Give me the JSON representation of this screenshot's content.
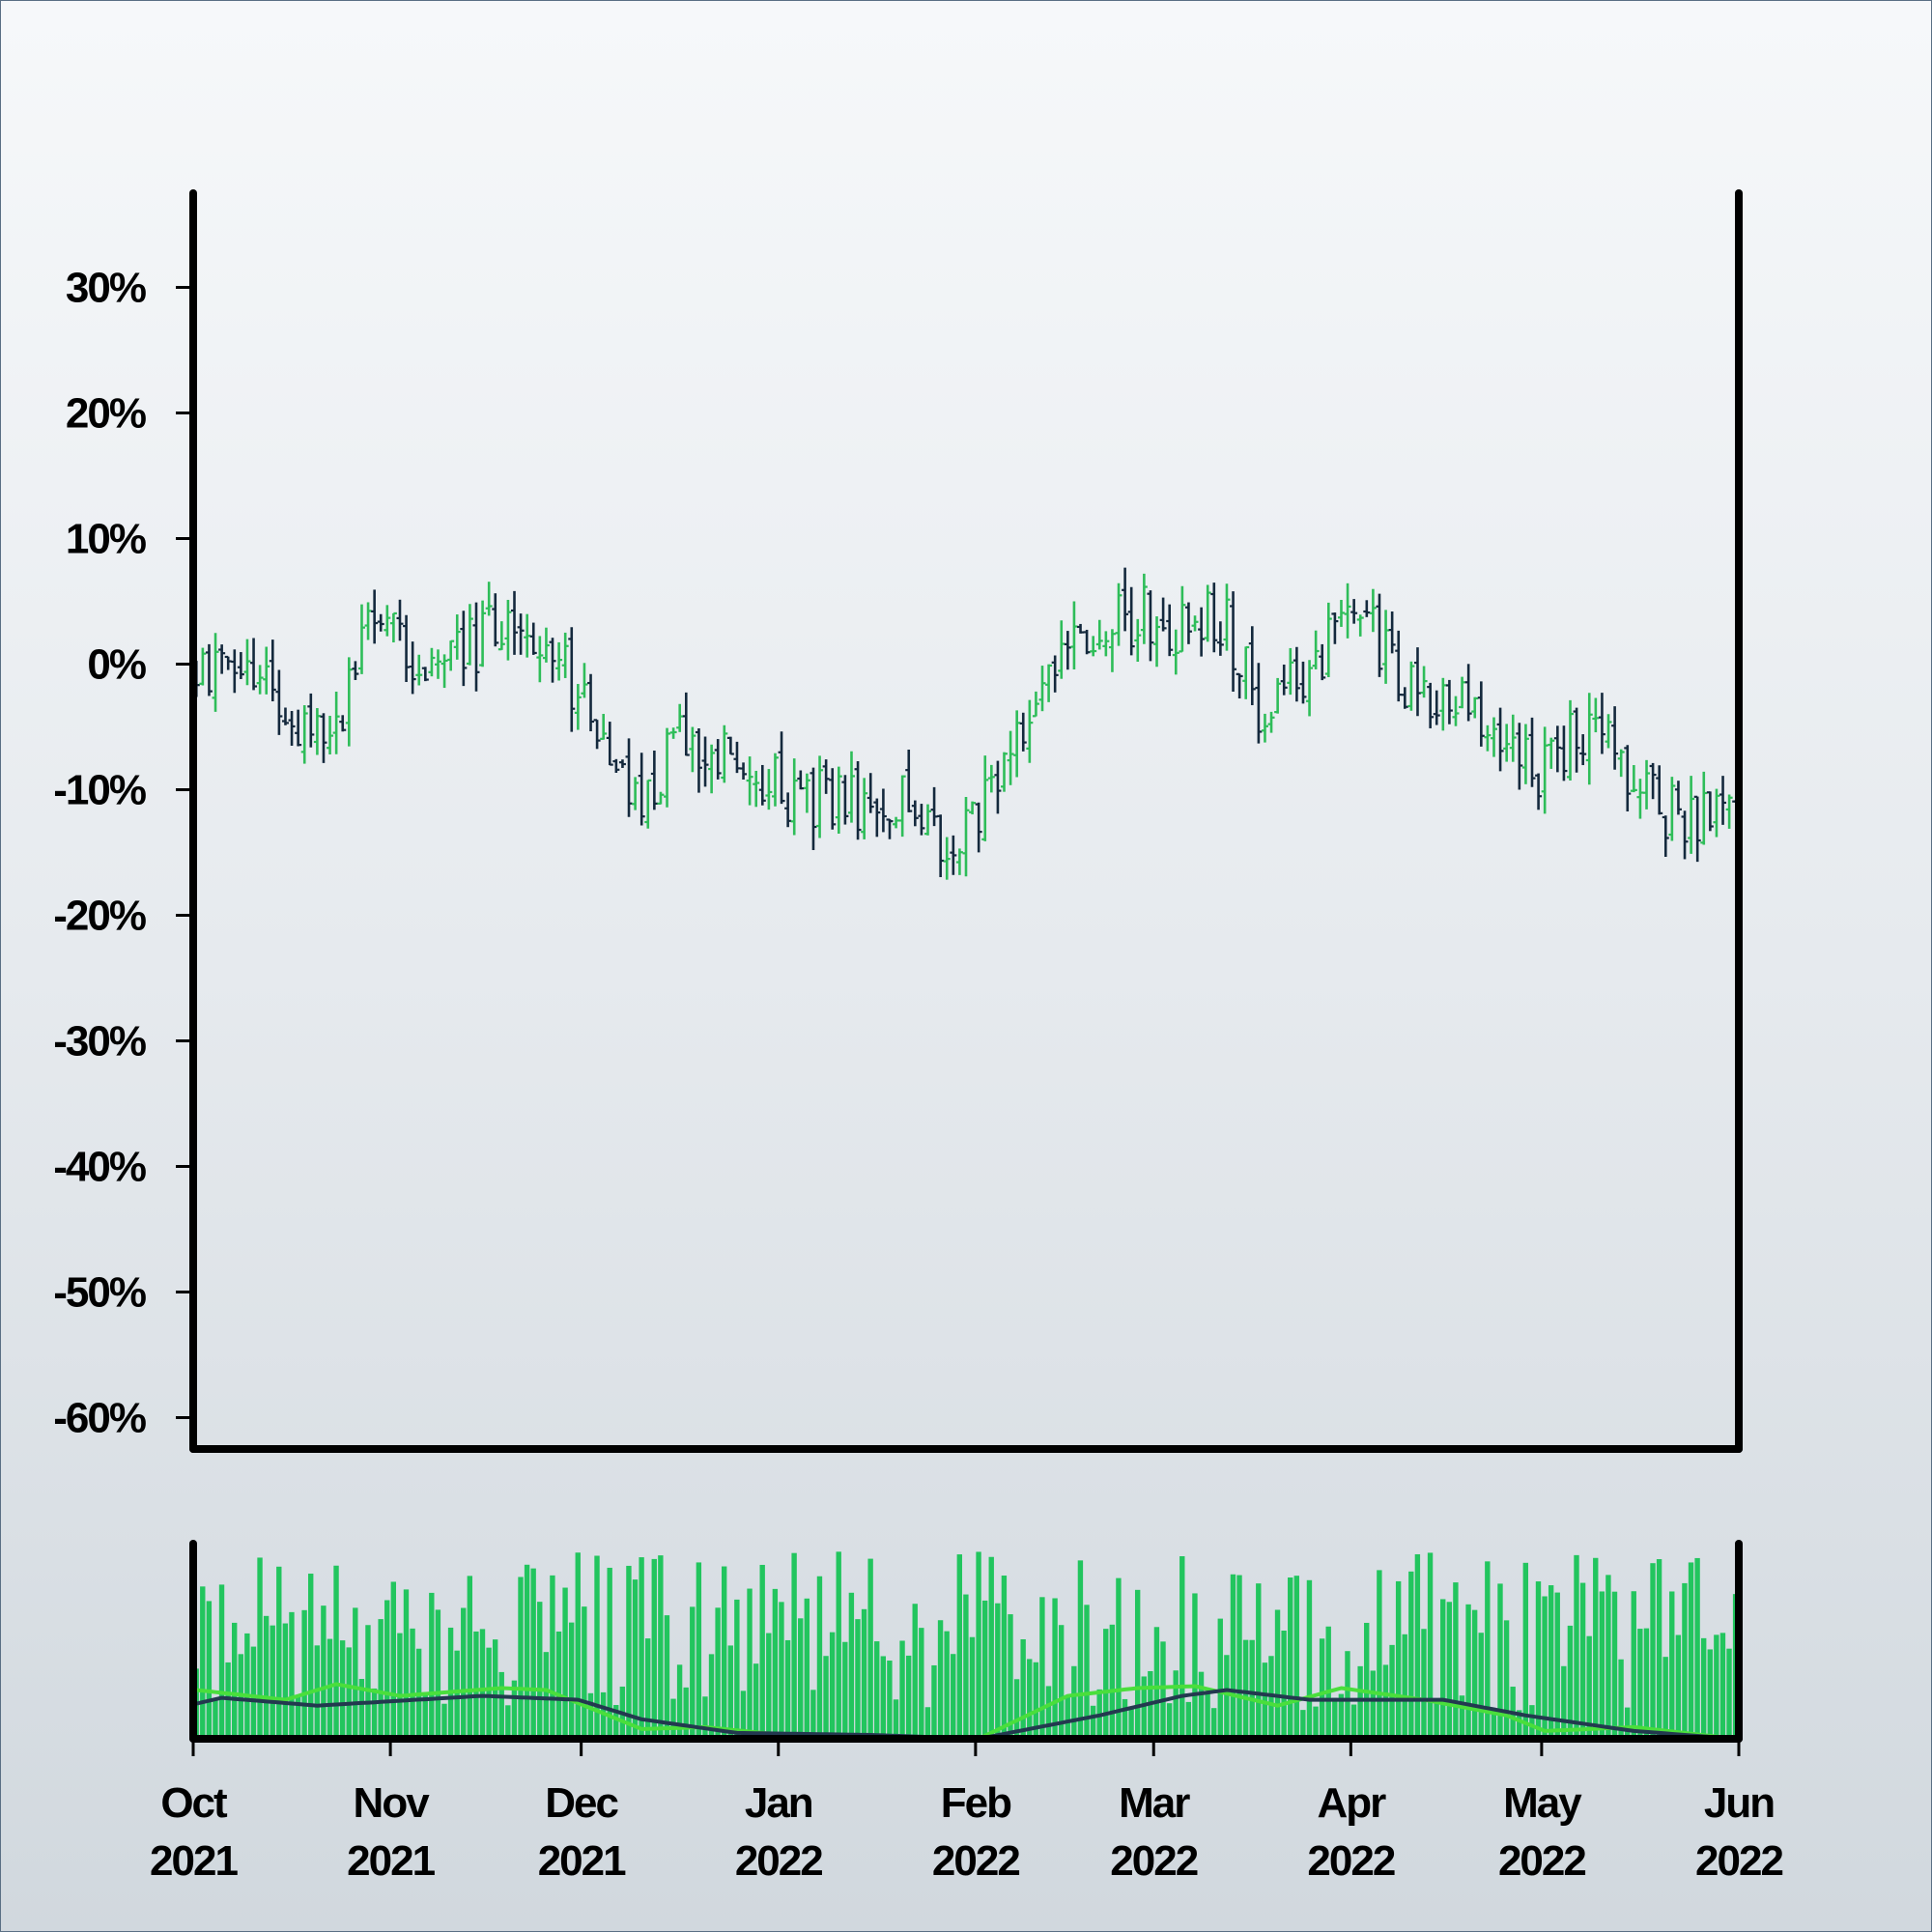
{
  "chart_data": {
    "type": "ohlc",
    "title": "",
    "xlabel": "",
    "ylabel": "",
    "colors": {
      "up": "#2ebd59",
      "down": "#14293d",
      "volume": "#22c55e",
      "ma_fast": "#4ade3c",
      "ma_slow": "#23394f",
      "axis": "#000000"
    },
    "price_panel": {
      "ylim": [
        -62.5,
        37.5
      ],
      "y_ticks": [
        {
          "value": 30,
          "label": "30%"
        },
        {
          "value": 20,
          "label": "20%"
        },
        {
          "value": 10,
          "label": "10%"
        },
        {
          "value": 0,
          "label": "0%"
        },
        {
          "value": -10,
          "label": "-10%"
        },
        {
          "value": -20,
          "label": "-20%"
        },
        {
          "value": -30,
          "label": "-30%"
        },
        {
          "value": -40,
          "label": "-40%"
        },
        {
          "value": -50,
          "label": "-50%"
        },
        {
          "value": -60,
          "label": "-60%"
        }
      ],
      "trend_keypoints": [
        [
          "2021-10-01",
          0
        ],
        [
          "2021-10-09",
          -1.5
        ],
        [
          "2021-10-20",
          -5
        ],
        [
          "2021-10-24",
          -4
        ],
        [
          "2021-10-30",
          5
        ],
        [
          "2021-11-05",
          -1
        ],
        [
          "2021-11-18",
          3
        ],
        [
          "2021-11-23",
          3
        ],
        [
          "2021-12-01",
          -3
        ],
        [
          "2021-12-09",
          -11
        ],
        [
          "2021-12-17",
          -6
        ],
        [
          "2022-01-05",
          -11
        ],
        [
          "2022-01-22",
          -10.5
        ],
        [
          "2022-01-26",
          -14
        ],
        [
          "2022-02-05",
          -9
        ],
        [
          "2022-02-14",
          1
        ],
        [
          "2022-02-26",
          4
        ],
        [
          "2022-03-05",
          3
        ],
        [
          "2022-03-11",
          4
        ],
        [
          "2022-03-17",
          -3
        ],
        [
          "2022-03-25",
          -1
        ],
        [
          "2022-04-01",
          5
        ],
        [
          "2022-04-08",
          -1
        ],
        [
          "2022-04-20",
          -4
        ],
        [
          "2022-04-29",
          -9
        ],
        [
          "2022-05-08",
          -5
        ],
        [
          "2022-05-14",
          -8
        ],
        [
          "2022-05-21",
          -12
        ],
        [
          "2022-05-31",
          -12
        ]
      ],
      "bar_spread_pct": 2.5,
      "wick_pct": 2.0
    },
    "volume_panel": {
      "ma_fast_keypoints": [
        [
          "2021-10-01",
          0.25
        ],
        [
          "2021-10-15",
          0.2
        ],
        [
          "2021-10-23",
          0.28
        ],
        [
          "2021-11-02",
          0.22
        ],
        [
          "2021-11-18",
          0.26
        ],
        [
          "2021-11-25",
          0.25
        ],
        [
          "2021-12-10",
          0.05
        ],
        [
          "2021-12-20",
          0.06
        ],
        [
          "2022-01-01",
          0.02
        ],
        [
          "2022-02-01",
          0.0
        ],
        [
          "2022-02-15",
          0.22
        ],
        [
          "2022-02-26",
          0.26
        ],
        [
          "2022-03-07",
          0.27
        ],
        [
          "2022-03-20",
          0.17
        ],
        [
          "2022-03-30",
          0.26
        ],
        [
          "2022-04-12",
          0.2
        ],
        [
          "2022-04-25",
          0.12
        ],
        [
          "2022-05-01",
          0.04
        ],
        [
          "2022-05-15",
          0.06
        ],
        [
          "2022-05-31",
          0.0
        ]
      ],
      "ma_slow_keypoints": [
        [
          "2021-10-01",
          0.18
        ],
        [
          "2021-10-05",
          0.21
        ],
        [
          "2021-10-20",
          0.17
        ],
        [
          "2021-11-15",
          0.22
        ],
        [
          "2021-11-30",
          0.2
        ],
        [
          "2021-12-10",
          0.1
        ],
        [
          "2021-12-25",
          0.03
        ],
        [
          "2022-01-15",
          0.02
        ],
        [
          "2022-02-01",
          0.0
        ],
        [
          "2022-02-20",
          0.12
        ],
        [
          "2022-03-05",
          0.22
        ],
        [
          "2022-03-12",
          0.25
        ],
        [
          "2022-03-25",
          0.2
        ],
        [
          "2022-04-15",
          0.2
        ],
        [
          "2022-04-28",
          0.12
        ],
        [
          "2022-05-15",
          0.04
        ],
        [
          "2022-05-31",
          0.0
        ]
      ],
      "bar_max": 1.0
    },
    "x_range": [
      "2021-10-01",
      "2022-06-01"
    ],
    "x_ticks": [
      {
        "date": "2021-10-01",
        "month": "Oct",
        "year": "2021"
      },
      {
        "date": "2021-11-01",
        "month": "Nov",
        "year": "2021"
      },
      {
        "date": "2021-12-01",
        "month": "Dec",
        "year": "2021"
      },
      {
        "date": "2022-01-01",
        "month": "Jan",
        "year": "2022"
      },
      {
        "date": "2022-02-01",
        "month": "Feb",
        "year": "2022"
      },
      {
        "date": "2022-03-01",
        "month": "Mar",
        "year": "2022"
      },
      {
        "date": "2022-04-01",
        "month": "Apr",
        "year": "2022"
      },
      {
        "date": "2022-05-01",
        "month": "May",
        "year": "2022"
      },
      {
        "date": "2022-06-01",
        "month": "Jun",
        "year": "2022"
      }
    ]
  }
}
